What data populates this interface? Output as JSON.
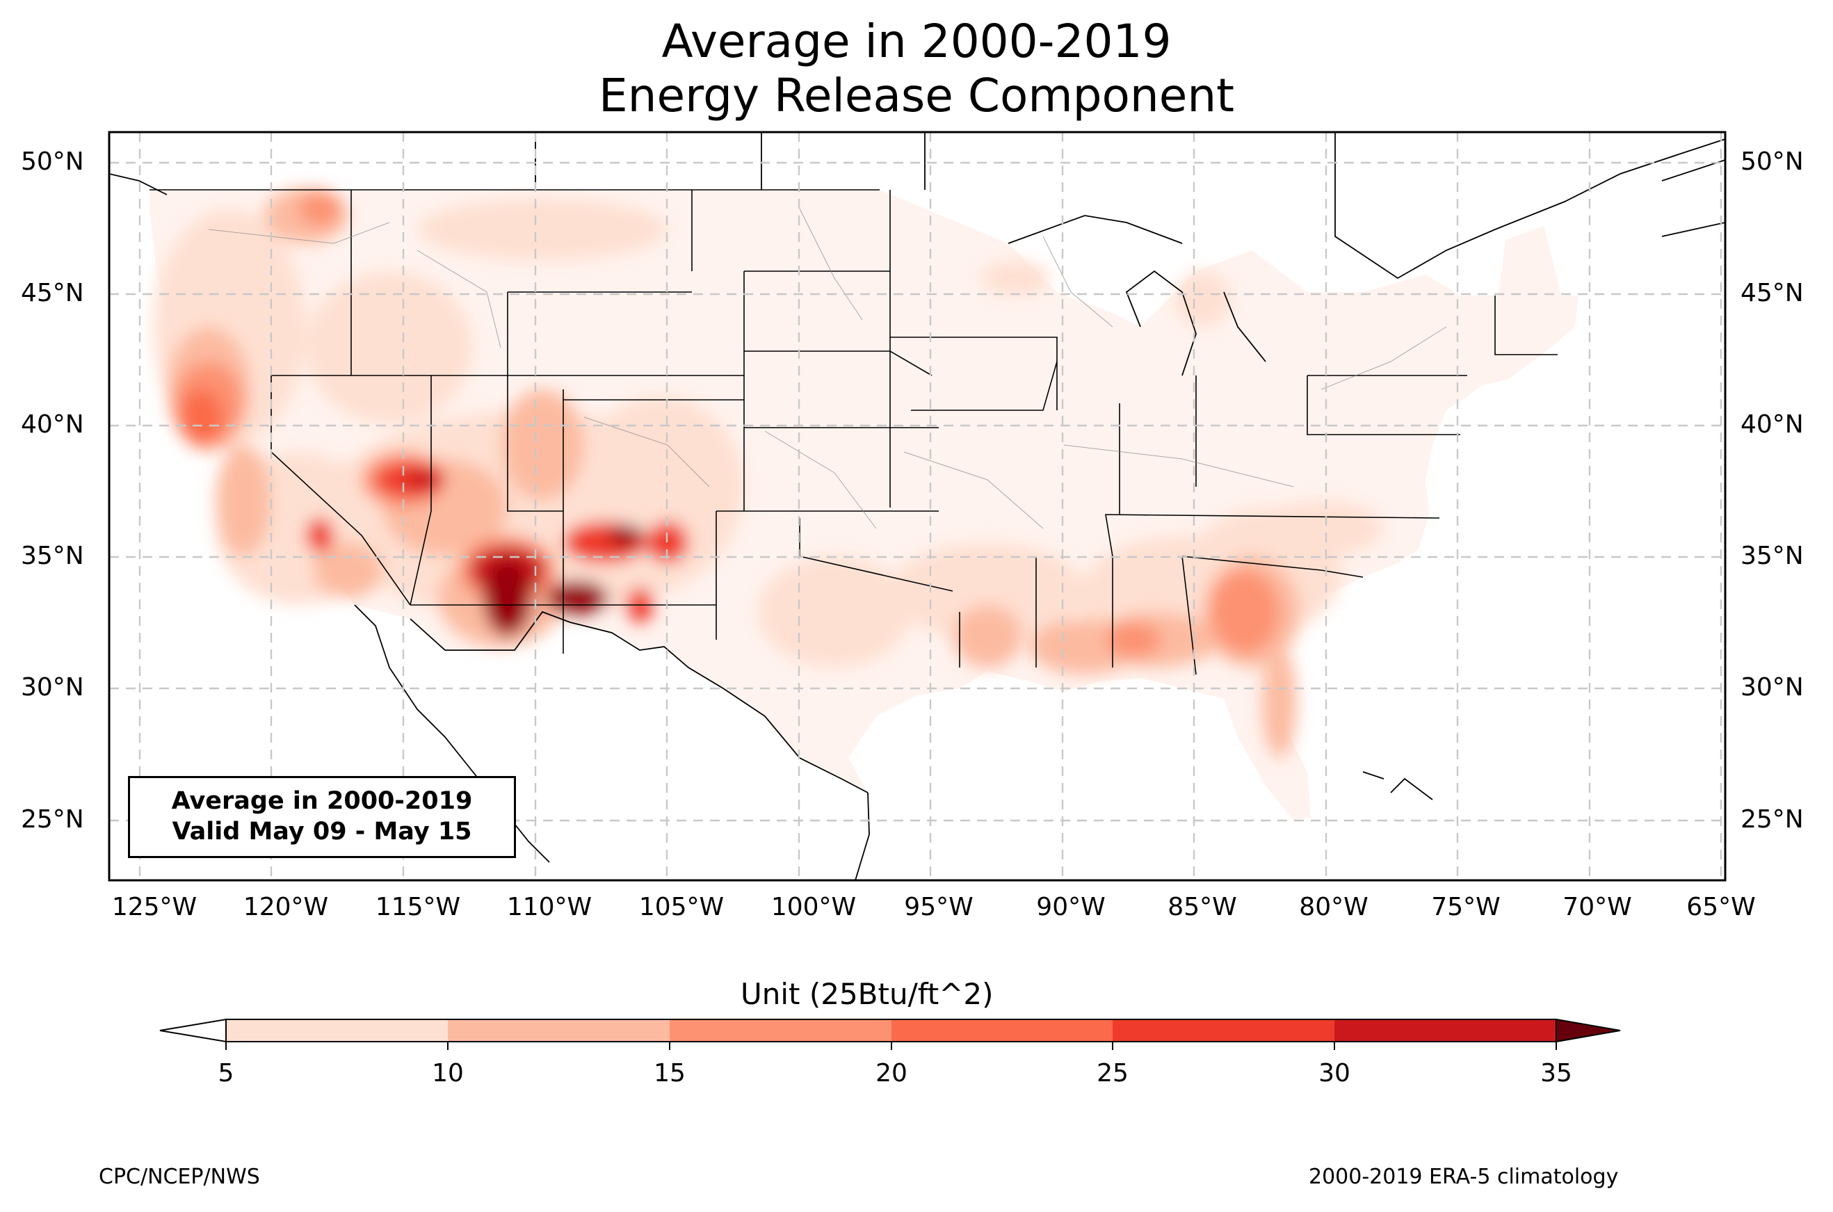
{
  "title_line1": "Average in 2000-2019",
  "title_line2": "Energy Release Component",
  "info_box": {
    "line1": "Average in 2000-2019",
    "line2": "Valid May 09 - May 15"
  },
  "lat_labels": [
    "50°N",
    "45°N",
    "40°N",
    "35°N",
    "30°N",
    "25°N"
  ],
  "lon_labels": [
    "125°W",
    "120°W",
    "115°W",
    "110°W",
    "105°W",
    "100°W",
    "95°W",
    "90°W",
    "85°W",
    "80°W",
    "75°W",
    "70°W",
    "65°W"
  ],
  "colorbar": {
    "title": "Unit (25Btu/ft^2)",
    "ticks": [
      "5",
      "10",
      "15",
      "20",
      "25",
      "30",
      "35"
    ],
    "colors": [
      "#fee0d2",
      "#fcbba1",
      "#fc9272",
      "#fb6a4a",
      "#ef3b2c",
      "#cb181d",
      "#99000d"
    ],
    "under_color": "#ffffff",
    "over_color": "#67000d"
  },
  "footer_left": "CPC/NCEP/NWS",
  "footer_right": "2000-2019 ERA-5 climatology",
  "colors": {
    "frame": "#000000",
    "grid": "#c8c8c8",
    "land_background": "#fff3ef"
  }
}
